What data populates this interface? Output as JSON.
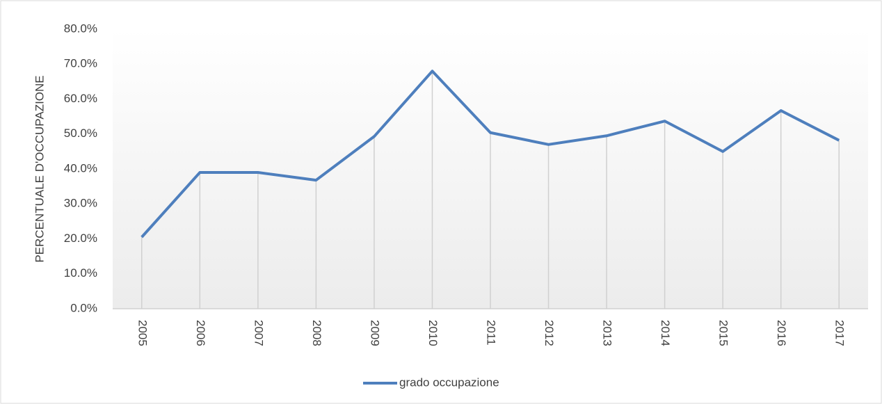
{
  "chart_data": {
    "type": "line",
    "y_axis_label": "PERCENTUALE D'OCCUPAZIONE",
    "categories": [
      "2005",
      "2006",
      "2007",
      "2008",
      "2009",
      "2010",
      "2011",
      "2012",
      "2013",
      "2014",
      "2015",
      "2016",
      "2017"
    ],
    "series": [
      {
        "name": "grado occupazione",
        "color": "#4e7fbd",
        "values": [
          20.5,
          39,
          39,
          36.8,
          49.3,
          68,
          50.4,
          47,
          49.5,
          53.7,
          45,
          56.7,
          48.2
        ]
      }
    ],
    "ylim": [
      0,
      80
    ],
    "yticks": [
      {
        "value": 0,
        "label": "0.0%"
      },
      {
        "value": 10,
        "label": "10.0%"
      },
      {
        "value": 20,
        "label": "20.0%"
      },
      {
        "value": 30,
        "label": "30.0%"
      },
      {
        "value": 40,
        "label": "40.0%"
      },
      {
        "value": 50,
        "label": "50.0%"
      },
      {
        "value": 60,
        "label": "60.0%"
      },
      {
        "value": 70,
        "label": "70.0%"
      },
      {
        "value": 80,
        "label": "80.0%"
      }
    ],
    "drop_lines": true,
    "legend": "bottom"
  }
}
